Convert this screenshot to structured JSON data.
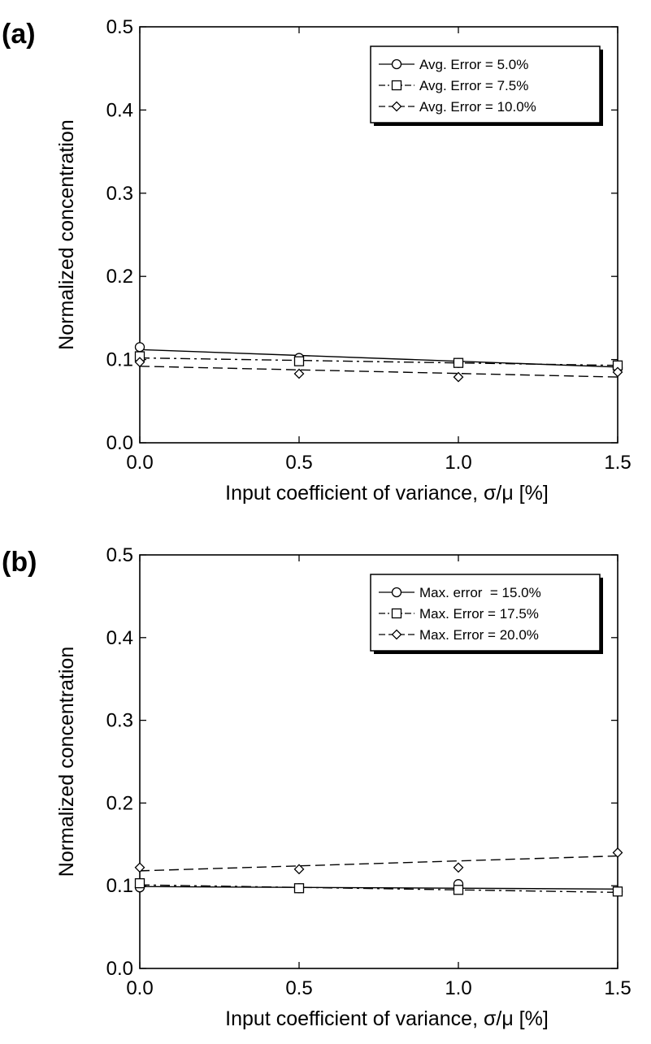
{
  "chart_data": [
    {
      "type": "line",
      "panel_label": "(a)",
      "xlabel": "Input coefficient of variance, σ/μ [%]",
      "ylabel": "Normalized concentration",
      "xlim": [
        0.0,
        1.5
      ],
      "ylim": [
        0.0,
        0.5
      ],
      "x_ticks": [
        "0.0",
        "0.5",
        "1.0",
        "1.5"
      ],
      "y_ticks": [
        "0.0",
        "0.1",
        "0.2",
        "0.3",
        "0.4",
        "0.5"
      ],
      "grid": false,
      "legend_position": "top-right",
      "series": [
        {
          "name": "Avg. Error = 5.0%",
          "marker": "circle",
          "line": "solid",
          "x": [
            0.0,
            0.5,
            1.0,
            1.5
          ],
          "y": [
            0.115,
            0.102,
            0.096,
            0.09
          ],
          "fit": [
            0.112,
            0.091
          ]
        },
        {
          "name": "Avg. Error = 7.5%",
          "marker": "square",
          "line": "dashdot",
          "x": [
            0.0,
            0.5,
            1.0,
            1.5
          ],
          "y": [
            0.104,
            0.098,
            0.096,
            0.093
          ],
          "fit": [
            0.102,
            0.093
          ]
        },
        {
          "name": "Avg. Error = 10.0%",
          "marker": "diamond",
          "line": "dashed",
          "x": [
            0.0,
            0.5,
            1.0,
            1.5
          ],
          "y": [
            0.097,
            0.083,
            0.079,
            0.085
          ],
          "fit": [
            0.092,
            0.079
          ]
        }
      ]
    },
    {
      "type": "line",
      "panel_label": "(b)",
      "xlabel": "Input coefficient of variance, σ/μ [%]",
      "ylabel": "Normalized concentration",
      "xlim": [
        0.0,
        1.5
      ],
      "ylim": [
        0.0,
        0.5
      ],
      "x_ticks": [
        "0.0",
        "0.5",
        "1.0",
        "1.5"
      ],
      "y_ticks": [
        "0.0",
        "0.1",
        "0.2",
        "0.3",
        "0.4",
        "0.5"
      ],
      "grid": false,
      "legend_position": "top-right",
      "series": [
        {
          "name": "Max. error  = 15.0%",
          "marker": "circle",
          "line": "solid",
          "x": [
            0.0,
            0.5,
            1.0,
            1.5
          ],
          "y": [
            0.098,
            0.097,
            0.102,
            0.093
          ],
          "fit": [
            0.099,
            0.096
          ]
        },
        {
          "name": "Max. Error = 17.5%",
          "marker": "square",
          "line": "dashdot",
          "x": [
            0.0,
            0.5,
            1.0,
            1.5
          ],
          "y": [
            0.103,
            0.097,
            0.095,
            0.093
          ],
          "fit": [
            0.101,
            0.092
          ]
        },
        {
          "name": "Max. Error = 20.0%",
          "marker": "diamond",
          "line": "dashed",
          "x": [
            0.0,
            0.5,
            1.0,
            1.5
          ],
          "y": [
            0.122,
            0.12,
            0.122,
            0.14
          ],
          "fit": [
            0.118,
            0.136
          ]
        }
      ]
    }
  ]
}
